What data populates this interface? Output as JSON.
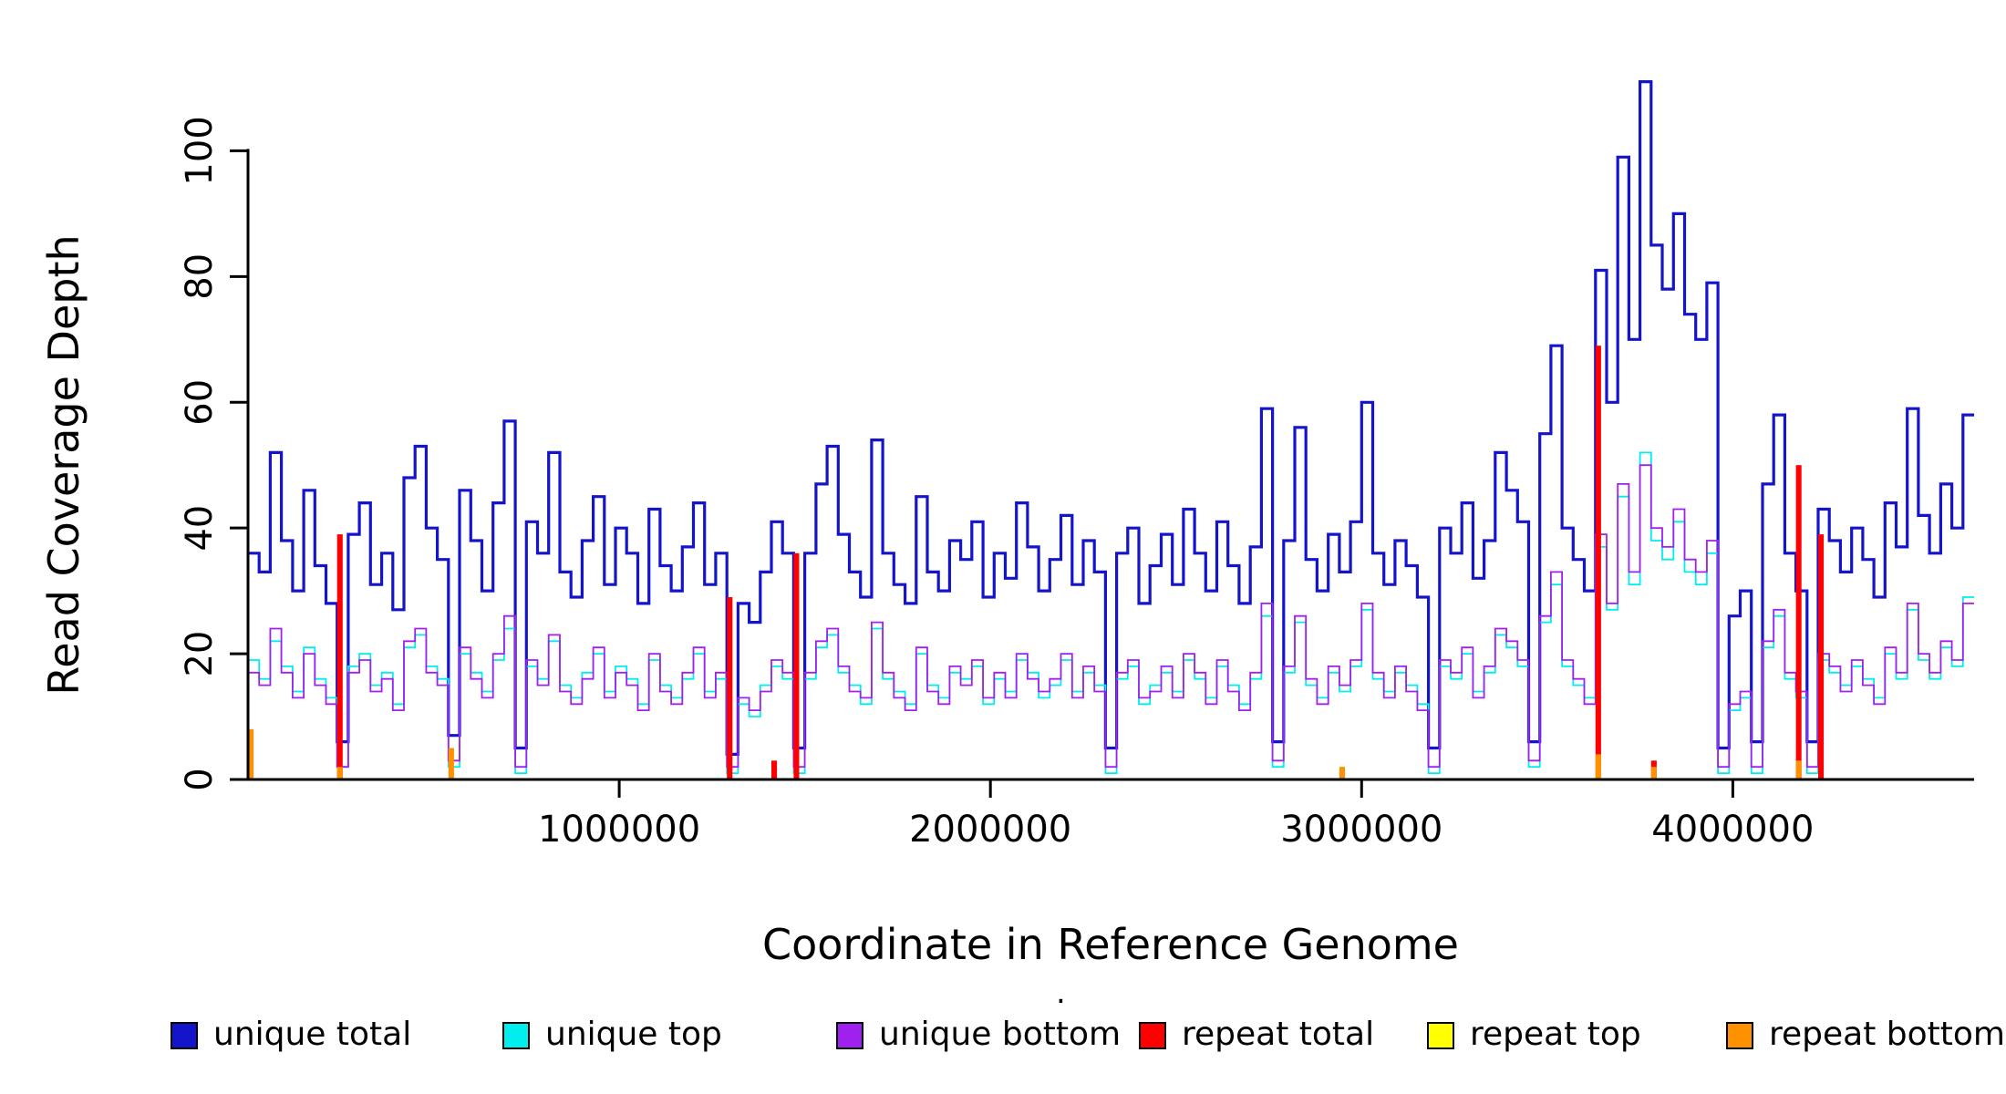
{
  "figure": {
    "xlabel": "Coordinate in Reference Genome",
    "ylabel": "Read Coverage Depth",
    "stray_mark": "."
  },
  "legend": {
    "items": [
      {
        "label": "unique total",
        "color": "#1414cc"
      },
      {
        "label": "unique top",
        "color": "#00eeee"
      },
      {
        "label": "unique bottom",
        "color": "#a020f0"
      },
      {
        "label": "repeat total",
        "color": "#ff0000"
      },
      {
        "label": "repeat top",
        "color": "#ffff00"
      },
      {
        "label": "repeat bottom",
        "color": "#ff9100"
      }
    ]
  },
  "chart_data": {
    "type": "line",
    "style": "step",
    "title": "",
    "xlabel": "Coordinate in Reference Genome",
    "ylabel": "Read Coverage Depth",
    "xlim": [
      0,
      4650000
    ],
    "ylim": [
      0,
      115
    ],
    "x_ticks": [
      1000000,
      2000000,
      3000000,
      4000000
    ],
    "y_ticks": [
      0,
      20,
      40,
      60,
      80,
      100
    ],
    "grid": false,
    "legend_position": "bottom",
    "x_start": 0,
    "x_step": 30000,
    "series": [
      {
        "name": "unique total",
        "color": "#1414cc",
        "width": 3.2,
        "values": [
          36,
          33,
          52,
          38,
          30,
          46,
          34,
          28,
          6,
          39,
          44,
          31,
          36,
          27,
          48,
          53,
          40,
          35,
          7,
          46,
          38,
          30,
          44,
          57,
          5,
          41,
          36,
          52,
          33,
          29,
          38,
          45,
          31,
          40,
          36,
          28,
          43,
          34,
          30,
          37,
          44,
          31,
          36,
          4,
          28,
          25,
          33,
          41,
          36,
          5,
          36,
          47,
          53,
          39,
          33,
          29,
          54,
          36,
          31,
          28,
          45,
          33,
          30,
          38,
          35,
          41,
          29,
          36,
          32,
          44,
          37,
          30,
          35,
          42,
          31,
          38,
          33,
          5,
          36,
          40,
          28,
          34,
          39,
          31,
          43,
          36,
          30,
          41,
          34,
          28,
          37,
          59,
          6,
          38,
          56,
          35,
          30,
          39,
          33,
          41,
          60,
          36,
          31,
          38,
          34,
          29,
          5,
          40,
          36,
          44,
          32,
          38,
          52,
          46,
          41,
          6,
          55,
          69,
          40,
          35,
          30,
          81,
          60,
          99,
          70,
          111,
          85,
          78,
          90,
          74,
          70,
          79,
          5,
          26,
          30,
          6,
          47,
          58,
          36,
          30,
          6,
          43,
          38,
          33,
          40,
          35,
          29,
          44,
          37,
          59,
          42,
          36,
          47,
          40,
          58
        ]
      },
      {
        "name": "unique top",
        "color": "#00eeee",
        "width": 1.8,
        "values": [
          19,
          16,
          22,
          18,
          14,
          21,
          16,
          13,
          2,
          18,
          20,
          15,
          17,
          12,
          21,
          23,
          18,
          16,
          2,
          20,
          17,
          14,
          19,
          24,
          1,
          18,
          16,
          22,
          15,
          13,
          17,
          20,
          14,
          18,
          16,
          12,
          19,
          15,
          13,
          16,
          20,
          14,
          16,
          1,
          12,
          10,
          15,
          18,
          16,
          1,
          16,
          21,
          23,
          17,
          15,
          12,
          24,
          16,
          14,
          12,
          20,
          15,
          13,
          17,
          16,
          18,
          12,
          16,
          14,
          19,
          17,
          13,
          15,
          19,
          14,
          17,
          15,
          1,
          16,
          18,
          12,
          15,
          17,
          14,
          19,
          16,
          13,
          18,
          15,
          12,
          16,
          26,
          2,
          17,
          25,
          15,
          13,
          17,
          14,
          18,
          27,
          16,
          14,
          17,
          15,
          12,
          1,
          18,
          16,
          20,
          14,
          17,
          23,
          21,
          18,
          2,
          25,
          31,
          18,
          15,
          13,
          37,
          27,
          45,
          31,
          52,
          38,
          35,
          41,
          33,
          31,
          36,
          1,
          11,
          13,
          1,
          21,
          26,
          16,
          13,
          1,
          19,
          17,
          15,
          18,
          16,
          13,
          20,
          16,
          27,
          19,
          16,
          21,
          18,
          29
        ]
      },
      {
        "name": "unique bottom",
        "color": "#a020f0",
        "width": 1.8,
        "values": [
          17,
          15,
          24,
          17,
          13,
          20,
          15,
          12,
          2,
          17,
          19,
          14,
          16,
          11,
          22,
          24,
          17,
          15,
          3,
          21,
          16,
          13,
          20,
          26,
          2,
          19,
          15,
          23,
          14,
          12,
          16,
          21,
          13,
          17,
          15,
          11,
          20,
          14,
          12,
          17,
          21,
          13,
          17,
          2,
          13,
          11,
          14,
          19,
          17,
          2,
          17,
          22,
          24,
          18,
          14,
          13,
          25,
          17,
          13,
          11,
          21,
          14,
          12,
          18,
          15,
          19,
          13,
          17,
          13,
          20,
          16,
          14,
          16,
          20,
          13,
          18,
          14,
          2,
          17,
          19,
          13,
          14,
          18,
          13,
          20,
          17,
          12,
          19,
          14,
          11,
          17,
          28,
          3,
          18,
          26,
          16,
          12,
          18,
          15,
          19,
          28,
          17,
          13,
          18,
          14,
          11,
          2,
          19,
          17,
          21,
          13,
          18,
          24,
          22,
          19,
          3,
          26,
          33,
          19,
          16,
          12,
          39,
          28,
          47,
          33,
          50,
          40,
          37,
          43,
          35,
          33,
          38,
          2,
          12,
          14,
          2,
          22,
          27,
          17,
          14,
          2,
          20,
          18,
          14,
          19,
          15,
          12,
          21,
          17,
          28,
          20,
          17,
          22,
          19,
          28
        ]
      },
      {
        "name": "repeat total",
        "color": "#ff0000",
        "width": 2.4,
        "baseline": 0,
        "spikes": {
          "i": [
            8,
            43,
            47,
            49,
            121,
            126,
            139,
            141
          ],
          "y": [
            39,
            29,
            3,
            36,
            69,
            3,
            50,
            39
          ]
        }
      },
      {
        "name": "repeat top",
        "color": "#ffff00",
        "width": 2.4,
        "baseline": 0,
        "spikes": {
          "i": [
            121
          ],
          "y": [
            2
          ]
        }
      },
      {
        "name": "repeat bottom",
        "color": "#ff9100",
        "width": 2.8,
        "baseline": 0,
        "spikes": {
          "i": [
            0,
            8,
            18,
            98,
            121,
            126,
            139
          ],
          "y": [
            8,
            2,
            5,
            2,
            4,
            2,
            3
          ]
        }
      }
    ]
  }
}
